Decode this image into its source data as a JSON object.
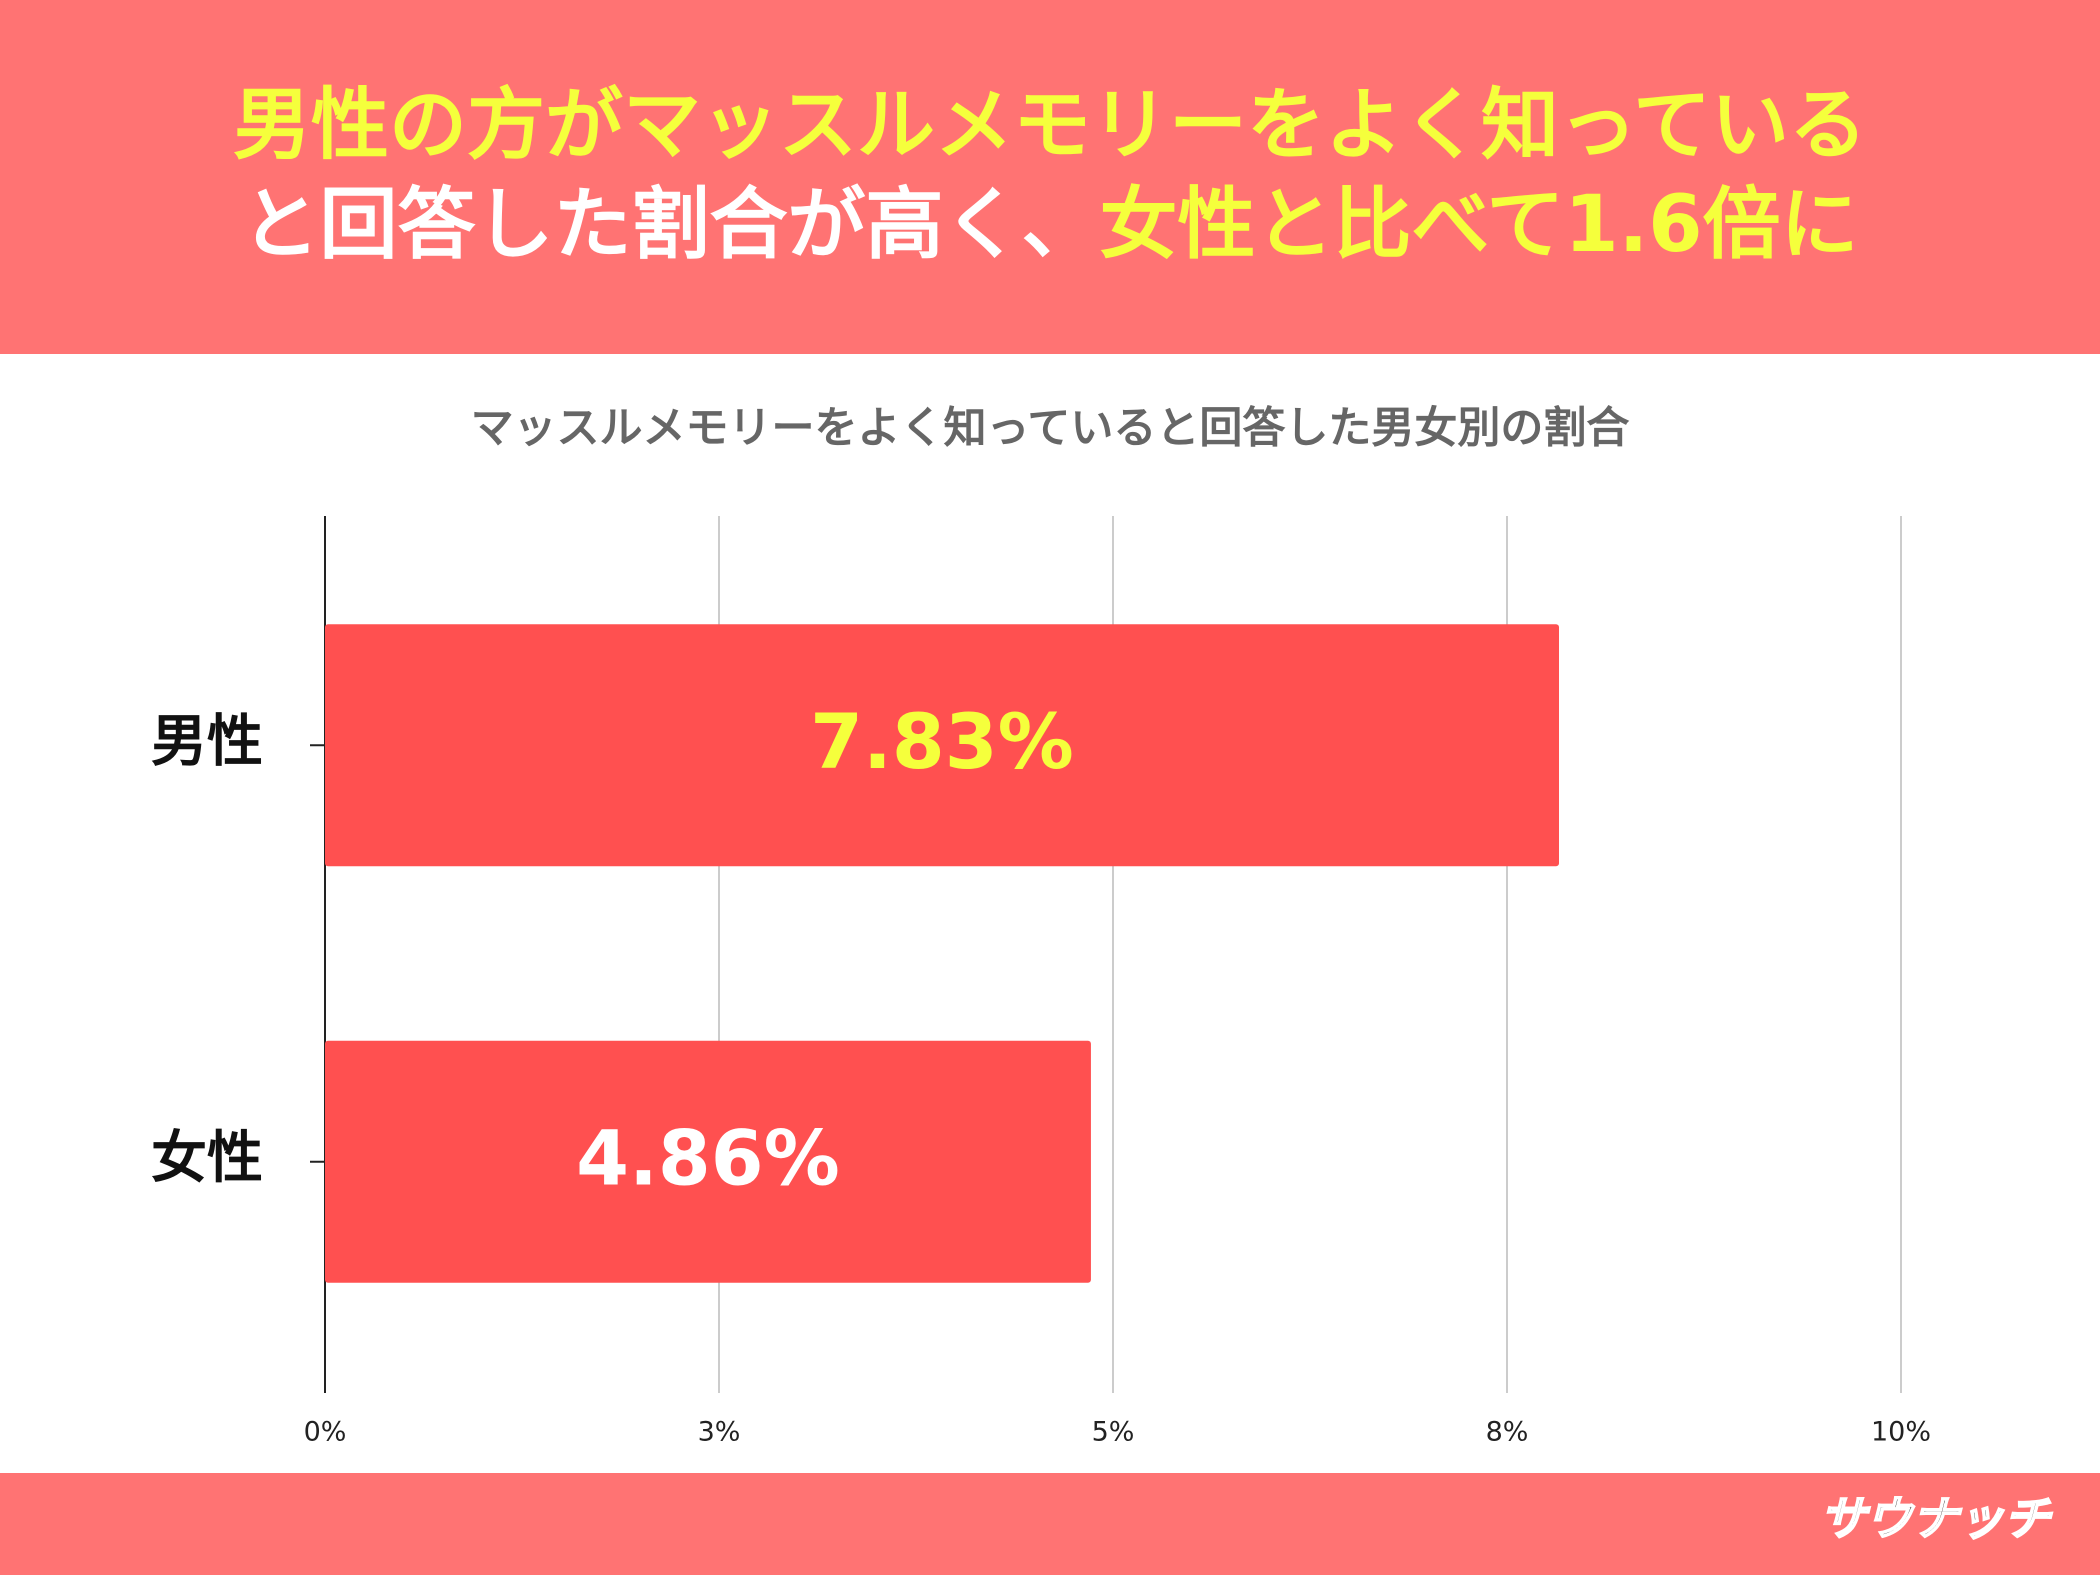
{
  "chart_data": {
    "type": "bar",
    "orientation": "horizontal",
    "headline": [
      "男性の方がマッスルメモリーをよく知っている",
      "と回答した割合が高く、",
      "女性と比べて1.6倍に"
    ],
    "headline_colors": [
      "#f5ff3c",
      "#ffffff",
      "#f5ff3c"
    ],
    "title": "マッスルメモリーをよく知っていると回答した男女別の割合",
    "categories": [
      "男性",
      "女性"
    ],
    "values": [
      7.83,
      4.86
    ],
    "value_labels": [
      "7.83%",
      "4.86%"
    ],
    "value_label_colors": [
      "#f5ff3c",
      "#ffffff"
    ],
    "color": "#ff5050",
    "xlim": [
      0,
      10
    ],
    "xticks": [
      {
        "value": 0,
        "label": "0%"
      },
      {
        "value": 2.5,
        "label": "3%"
      },
      {
        "value": 5,
        "label": "5%"
      },
      {
        "value": 7.5,
        "label": "8%"
      },
      {
        "value": 10,
        "label": "10%"
      }
    ],
    "grid": true,
    "logo": "サウナッチ"
  }
}
